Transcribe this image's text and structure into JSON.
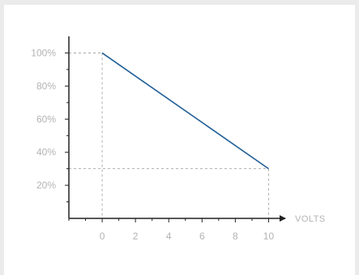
{
  "chart_data": {
    "type": "line",
    "title": "",
    "xlabel": "VOLTS",
    "ylabel": "",
    "xlim": [
      -2,
      11
    ],
    "ylim": [
      0,
      1.1
    ],
    "x_ticks": [
      "0",
      "2",
      "4",
      "6",
      "8",
      "10"
    ],
    "y_ticks": [
      "20%",
      "40%",
      "60%",
      "80%",
      "100%"
    ],
    "series": [
      {
        "x": [
          0,
          10
        ],
        "y": [
          1.0,
          0.3
        ]
      }
    ],
    "reference_lines": [
      {
        "at_x": 0,
        "at_y": 1.0
      },
      {
        "at_x": 10,
        "at_y": 0.3
      }
    ],
    "grid": false,
    "colors": {
      "line": "#1f5e96",
      "axis": "#222222",
      "guide": "#9a9a9a",
      "label": "#b3b3b3"
    }
  }
}
